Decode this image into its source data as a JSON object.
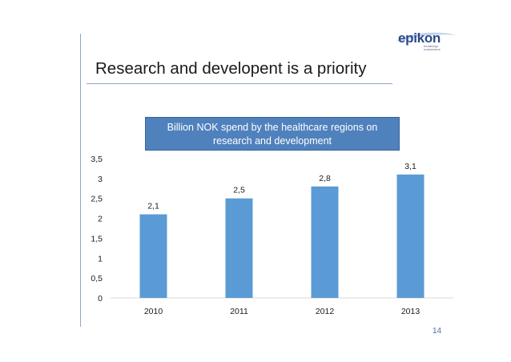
{
  "slide": {
    "title": "Research and developent is a priority",
    "page_number": "14"
  },
  "logo": {
    "word": "epikon",
    "tagline_line1": "forvaltnings-",
    "tagline_line2": "konsulentene",
    "color": "#2a4a8a"
  },
  "callout": {
    "line1": "Billion NOK spend by the healthcare regions on",
    "line2": "research and development",
    "color": "#4f81bd"
  },
  "chart_data": {
    "type": "bar",
    "title": "Billion NOK spend by the healthcare regions on research and development",
    "categories": [
      "2010",
      "2011",
      "2012",
      "2013"
    ],
    "values": [
      2.1,
      2.5,
      2.8,
      3.1
    ],
    "data_labels": [
      "2,1",
      "2,5",
      "2,8",
      "3,1"
    ],
    "ylim": [
      0,
      3.5
    ],
    "yticks": [
      0,
      0.5,
      1,
      1.5,
      2,
      2.5,
      3,
      3.5
    ],
    "ytick_labels": [
      "0",
      "0,5",
      "1",
      "1,5",
      "2",
      "2,5",
      "3",
      "3,5"
    ],
    "xlabel": "",
    "ylabel": "",
    "grid": false,
    "bar_color": "#5b9bd5"
  }
}
